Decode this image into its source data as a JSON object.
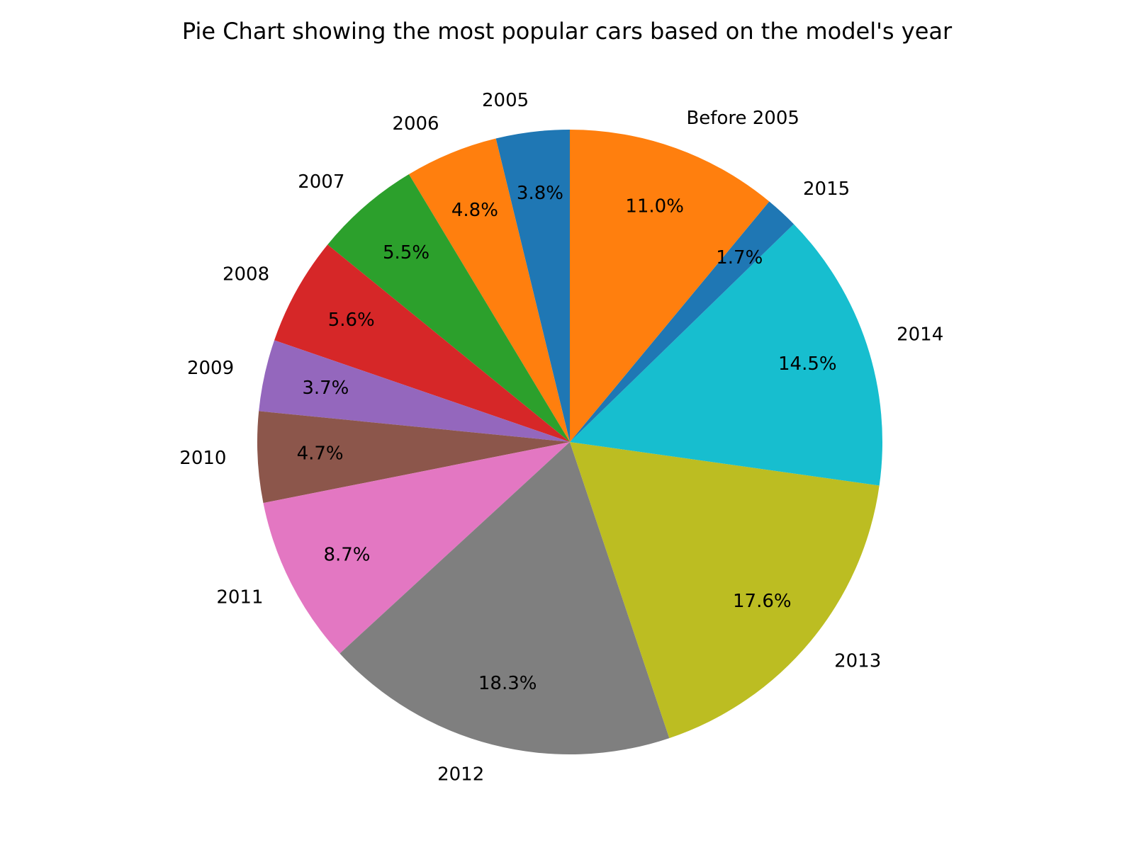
{
  "chart_data": {
    "type": "pie",
    "title": "Pie Chart showing the most popular cars based on the model's year",
    "start_angle_deg": 90,
    "direction": "counterclockwise",
    "slices": [
      {
        "label": "2005",
        "value": 3.8,
        "pct_label": "3.8%",
        "color": "#1f77b4"
      },
      {
        "label": "2006",
        "value": 4.8,
        "pct_label": "4.8%",
        "color": "#ff7f0e"
      },
      {
        "label": "2007",
        "value": 5.5,
        "pct_label": "5.5%",
        "color": "#2ca02c"
      },
      {
        "label": "2008",
        "value": 5.6,
        "pct_label": "5.6%",
        "color": "#d62728"
      },
      {
        "label": "2009",
        "value": 3.7,
        "pct_label": "3.7%",
        "color": "#9467bd"
      },
      {
        "label": "2010",
        "value": 4.7,
        "pct_label": "4.7%",
        "color": "#8c564b"
      },
      {
        "label": "2011",
        "value": 8.7,
        "pct_label": "8.7%",
        "color": "#e377c2"
      },
      {
        "label": "2012",
        "value": 18.3,
        "pct_label": "18.3%",
        "color": "#7f7f7f"
      },
      {
        "label": "2013",
        "value": 17.6,
        "pct_label": "17.6%",
        "color": "#bcbd22"
      },
      {
        "label": "2014",
        "value": 14.5,
        "pct_label": "14.5%",
        "color": "#17becf"
      },
      {
        "label": "2015",
        "value": 1.7,
        "pct_label": "1.7%",
        "color": "#1f77b4"
      },
      {
        "label": "Before 2005",
        "value": 11.0,
        "pct_label": "11.0%",
        "color": "#ff7f0e"
      }
    ]
  }
}
